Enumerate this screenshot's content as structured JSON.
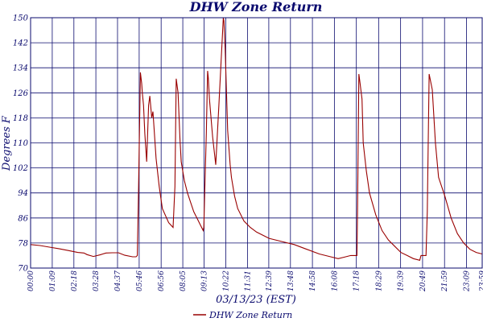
{
  "chart_data": {
    "type": "line",
    "title": "DHW Zone Return",
    "xlabel": "03/13/23 (EST)",
    "ylabel": "Degrees F",
    "ylim": [
      70,
      150
    ],
    "yticks": [
      70,
      78,
      86,
      94,
      102,
      110,
      118,
      126,
      134,
      142,
      150
    ],
    "xlim": [
      0,
      1439
    ],
    "xtick_labels": [
      "00:00",
      "01:09",
      "02:18",
      "03:28",
      "04:37",
      "05:46",
      "06:56",
      "08:05",
      "09:13",
      "10:22",
      "11:31",
      "12:39",
      "13:48",
      "14:58",
      "16:08",
      "17:18",
      "18:29",
      "19:39",
      "20:49",
      "21:59",
      "23:09",
      "23:59"
    ],
    "xtick_minutes": [
      0,
      69,
      138,
      208,
      277,
      346,
      416,
      485,
      553,
      622,
      691,
      759,
      828,
      898,
      968,
      1038,
      1109,
      1179,
      1249,
      1319,
      1389,
      1439
    ],
    "grid": true,
    "legend": "bottom",
    "colors": {
      "line": "#990000",
      "grid": "#0a0a6e",
      "text": "#0a0a6e"
    },
    "series": [
      {
        "name": "DHW Zone Return",
        "x": [
          0,
          30,
          60,
          90,
          120,
          150,
          170,
          180,
          200,
          220,
          240,
          260,
          280,
          300,
          325,
          330,
          336,
          340,
          344,
          350,
          354,
          356,
          360,
          364,
          370,
          376,
          380,
          386,
          390,
          400,
          410,
          420,
          440,
          454,
          460,
          464,
          470,
          476,
          480,
          490,
          500,
          510,
          520,
          530,
          540,
          550,
          552,
          556,
          560,
          564,
          566,
          570,
          580,
          590,
          600,
          614,
          616,
          620,
          628,
          636,
          640,
          650,
          660,
          680,
          700,
          720,
          760,
          800,
          840,
          880,
          920,
          960,
          980,
          1000,
          1020,
          1030,
          1036,
          1040,
          1042,
          1046,
          1050,
          1056,
          1060,
          1070,
          1080,
          1100,
          1120,
          1140,
          1160,
          1180,
          1200,
          1220,
          1240,
          1244,
          1250,
          1256,
          1260,
          1264,
          1270,
          1280,
          1290,
          1300,
          1320,
          1340,
          1360,
          1380,
          1400,
          1420,
          1439
        ],
        "y": [
          77.5,
          77.2,
          76.7,
          76.2,
          75.6,
          75.0,
          74.8,
          74.3,
          73.7,
          74.2,
          74.8,
          74.9,
          74.9,
          74.1,
          73.6,
          73.6,
          73.6,
          74,
          95,
          132.5,
          129,
          126,
          122,
          113,
          104,
          122,
          125,
          118,
          120,
          105,
          96,
          89,
          84.5,
          83,
          96,
          130.5,
          126,
          111,
          104,
          98,
          94,
          91,
          88,
          86,
          84,
          82,
          83,
          99,
          113,
          133,
          131,
          124,
          112,
          103,
          122,
          150,
          149,
          140,
          114,
          103,
          99,
          93,
          89,
          85,
          83,
          81.5,
          79.5,
          78.5,
          77.5,
          76,
          74.5,
          73.5,
          73,
          73.5,
          74,
          74,
          74,
          74,
          90,
          132,
          129,
          124,
          110,
          101,
          94,
          87,
          82,
          79,
          77,
          75,
          74,
          73,
          72.5,
          74,
          74,
          74,
          74,
          88,
          132,
          127,
          110,
          99,
          93,
          86,
          81,
          78,
          76,
          75,
          74.5
        ]
      }
    ]
  }
}
